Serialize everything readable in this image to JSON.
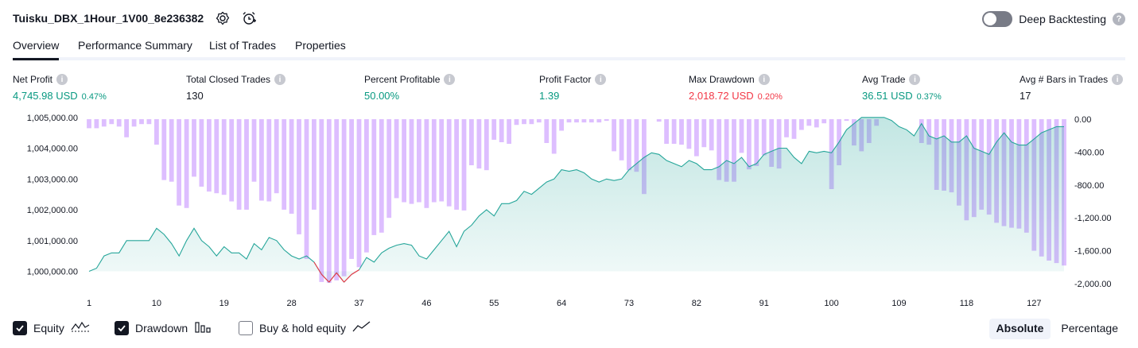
{
  "header": {
    "title": "Tuisku_DBX_1Hour_1V00_8e236382",
    "deep_backtesting_label": "Deep Backtesting",
    "deep_backtesting_on": false
  },
  "tabs": [
    {
      "label": "Overview",
      "active": true
    },
    {
      "label": "Performance Summary",
      "active": false
    },
    {
      "label": "List of Trades",
      "active": false
    },
    {
      "label": "Properties",
      "active": false
    }
  ],
  "metrics": [
    {
      "label": "Net Profit",
      "value": "4,745.98 USD",
      "pct": "0.47%",
      "tone": "pos"
    },
    {
      "label": "Total Closed Trades",
      "value": "130",
      "pct": "",
      "tone": "neu"
    },
    {
      "label": "Percent Profitable",
      "value": "50.00%",
      "pct": "",
      "tone": "pos"
    },
    {
      "label": "Profit Factor",
      "value": "1.39",
      "pct": "",
      "tone": "pos"
    },
    {
      "label": "Max Drawdown",
      "value": "2,018.72 USD",
      "pct": "0.20%",
      "tone": "neg"
    },
    {
      "label": "Avg Trade",
      "value": "36.51 USD",
      "pct": "0.37%",
      "tone": "pos"
    },
    {
      "label": "Avg # Bars in Trades",
      "value": "17",
      "pct": "",
      "tone": "neu"
    }
  ],
  "legend": {
    "equity_label": "Equity",
    "equity_checked": true,
    "drawdown_label": "Drawdown",
    "drawdown_checked": true,
    "buyhold_label": "Buy & hold equity",
    "buyhold_checked": false
  },
  "mode": {
    "absolute_label": "Absolute",
    "percentage_label": "Percentage",
    "active": "absolute"
  },
  "colors": {
    "equity_line": "#26a69a",
    "equity_fill": "#26a69a",
    "equity_below": "#f23645",
    "drawdown_bar": "#d1a8ff",
    "positive": "#089981",
    "negative": "#f23645"
  },
  "chart_data": {
    "type": "area",
    "x_ticks": [
      1,
      10,
      19,
      28,
      37,
      46,
      55,
      64,
      73,
      82,
      91,
      100,
      109,
      118,
      127
    ],
    "x_range": [
      1,
      131
    ],
    "left_axis": {
      "ticks": [
        1000000,
        1001000,
        1002000,
        1003000,
        1004000,
        1005000
      ],
      "tick_labels": [
        "1,000,000.00",
        "1,001,000.00",
        "1,002,000.00",
        "1,003,000.00",
        "1,004,000.00",
        "1,005,000.00"
      ],
      "range": [
        999600,
        1005200
      ]
    },
    "right_axis": {
      "ticks": [
        0,
        -400,
        -800,
        -1200,
        -1600,
        -2000
      ],
      "tick_labels": [
        "0.00",
        "-400.00",
        "-800.00",
        "-1,200.00",
        "-1,600.00",
        "-2,000.00"
      ],
      "range": [
        -2000,
        0
      ]
    },
    "series": [
      {
        "name": "Equity",
        "x": [
          1,
          2,
          3,
          4,
          5,
          6,
          7,
          8,
          9,
          10,
          11,
          12,
          13,
          14,
          15,
          16,
          17,
          18,
          19,
          20,
          21,
          22,
          23,
          24,
          25,
          26,
          27,
          28,
          29,
          30,
          31,
          32,
          33,
          34,
          35,
          36,
          37,
          38,
          39,
          40,
          41,
          42,
          43,
          44,
          45,
          46,
          47,
          48,
          49,
          50,
          51,
          52,
          53,
          54,
          55,
          56,
          57,
          58,
          59,
          60,
          61,
          62,
          63,
          64,
          65,
          66,
          67,
          68,
          69,
          70,
          71,
          72,
          73,
          74,
          75,
          76,
          77,
          78,
          79,
          80,
          81,
          82,
          83,
          84,
          85,
          86,
          87,
          88,
          89,
          90,
          91,
          92,
          93,
          94,
          95,
          96,
          97,
          98,
          99,
          100,
          101,
          102,
          103,
          104,
          105,
          106,
          107,
          108,
          109,
          110,
          111,
          112,
          113,
          114,
          115,
          116,
          117,
          118,
          119,
          120,
          121,
          122,
          123,
          124,
          125,
          126,
          127,
          128,
          129,
          130,
          131
        ],
        "y": [
          1000000,
          1000100,
          1000500,
          1000600,
          1000600,
          1001000,
          1001000,
          1001000,
          1001000,
          1001400,
          1001200,
          1000900,
          1000500,
          1001000,
          1001400,
          1001000,
          1000800,
          1000500,
          1000800,
          1000600,
          1000600,
          1000400,
          1000900,
          1000700,
          1001100,
          1001000,
          1000700,
          1000500,
          1000400,
          1000500,
          1000300,
          999900,
          999650,
          999950,
          999650,
          999900,
          1000050,
          1000450,
          1000300,
          1000600,
          1000750,
          1000850,
          1000900,
          1000850,
          1000500,
          1000400,
          1000700,
          1001000,
          1001300,
          1000800,
          1001300,
          1001500,
          1001800,
          1002000,
          1001800,
          1002200,
          1002200,
          1002300,
          1002600,
          1002500,
          1002700,
          1002900,
          1003000,
          1003300,
          1003250,
          1003300,
          1003200,
          1003000,
          1002900,
          1003000,
          1002950,
          1003000,
          1003300,
          1003500,
          1003700,
          1003850,
          1003800,
          1003600,
          1003500,
          1003400,
          1003600,
          1003500,
          1003300,
          1003300,
          1003400,
          1003600,
          1003500,
          1003700,
          1003400,
          1003500,
          1003800,
          1003900,
          1004000,
          1004000,
          1003700,
          1003500,
          1003900,
          1003850,
          1003900,
          1003850,
          1004200,
          1004600,
          1004800,
          1005000,
          1005000,
          1005000,
          1005000,
          1004900,
          1004700,
          1004600,
          1004400,
          1004800,
          1004400,
          1004300,
          1004400,
          1004200,
          1004200,
          1004400,
          1004000,
          1003900,
          1003800,
          1004200,
          1004500,
          1004200,
          1004100,
          1004100,
          1004300,
          1004500,
          1004600,
          1004700,
          1004700
        ]
      },
      {
        "name": "Drawdown",
        "x": [
          1,
          2,
          3,
          4,
          5,
          6,
          7,
          8,
          9,
          10,
          11,
          12,
          13,
          14,
          15,
          16,
          17,
          18,
          19,
          20,
          21,
          22,
          23,
          24,
          25,
          26,
          27,
          28,
          29,
          30,
          31,
          32,
          33,
          34,
          35,
          36,
          37,
          38,
          39,
          40,
          41,
          42,
          43,
          44,
          45,
          46,
          47,
          48,
          49,
          50,
          51,
          52,
          53,
          54,
          55,
          56,
          57,
          58,
          59,
          60,
          61,
          62,
          63,
          64,
          65,
          66,
          67,
          68,
          69,
          70,
          71,
          72,
          73,
          74,
          75,
          76,
          77,
          78,
          79,
          80,
          81,
          82,
          83,
          84,
          85,
          86,
          87,
          88,
          89,
          90,
          91,
          92,
          93,
          94,
          95,
          96,
          97,
          98,
          99,
          100,
          101,
          102,
          103,
          104,
          105,
          106,
          107,
          108,
          109,
          110,
          111,
          112,
          113,
          114,
          115,
          116,
          117,
          118,
          119,
          120,
          121,
          122,
          123,
          124,
          125,
          126,
          127,
          128,
          129,
          130,
          131
        ],
        "y": [
          -110,
          -110,
          -90,
          -60,
          -90,
          -220,
          -90,
          -60,
          -60,
          -310,
          -740,
          -760,
          -1050,
          -1080,
          -700,
          -820,
          -880,
          -900,
          -920,
          -1000,
          -1100,
          -1100,
          -760,
          -990,
          -1000,
          -900,
          -1100,
          -1150,
          -1400,
          -1700,
          -1100,
          -1980,
          -1990,
          -1960,
          -1910,
          -1700,
          -1800,
          -1620,
          -1410,
          -1380,
          -1200,
          -960,
          -1010,
          -1030,
          -1010,
          -1080,
          -1010,
          -1000,
          -1060,
          -1100,
          -1110,
          -560,
          -600,
          -620,
          -250,
          -280,
          -300,
          -70,
          -60,
          -60,
          -40,
          -290,
          -420,
          -140,
          -40,
          -40,
          -40,
          -40,
          -40,
          -20,
          -390,
          -500,
          -620,
          -640,
          -910,
          0,
          -30,
          -300,
          -300,
          -310,
          -360,
          -450,
          -340,
          -380,
          -740,
          -760,
          -760,
          -410,
          -610,
          -570,
          -440,
          -580,
          -600,
          -220,
          -240,
          -130,
          -80,
          -100,
          -50,
          -850,
          -560,
          -20,
          -320,
          -390,
          -290,
          -80,
          0,
          0,
          0,
          0,
          0,
          -290,
          -310,
          -860,
          -870,
          -890,
          -1050,
          -1230,
          -1190,
          -1100,
          -1160,
          -1260,
          -1300,
          -1320,
          -1330,
          -1380,
          -1600,
          -1670,
          -1720,
          -1750,
          -1780
        ]
      }
    ]
  }
}
